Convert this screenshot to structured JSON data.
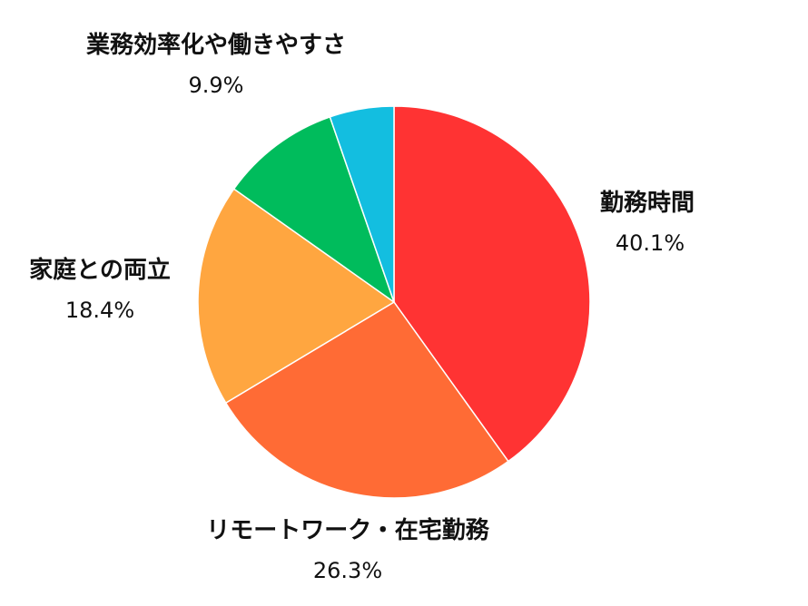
{
  "chart_data": {
    "type": "pie",
    "title": "",
    "start_angle_deg": 0,
    "direction": "clockwise",
    "slices": [
      {
        "label": "勤務時間",
        "value": 40.1,
        "value_label": "40.1%",
        "color": "#FF3333"
      },
      {
        "label": "リモートワーク・在宅勤務",
        "value": 26.3,
        "value_label": "26.3%",
        "color": "#FF6B35"
      },
      {
        "label": "家庭との両立",
        "value": 18.4,
        "value_label": "18.4%",
        "color": "#FFA640"
      },
      {
        "label": "業務効率化や働きやすさ",
        "value": 9.9,
        "value_label": "9.9%",
        "color": "#00BC5C"
      },
      {
        "label": "",
        "value": 5.3,
        "value_label": "",
        "color": "#13BEE0"
      }
    ]
  }
}
